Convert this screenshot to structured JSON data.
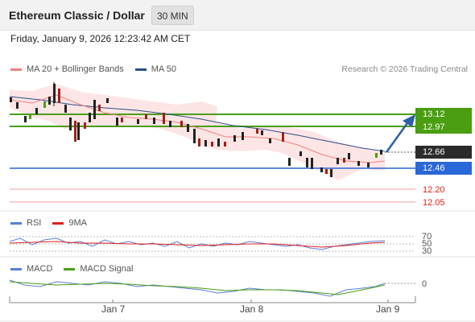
{
  "header": {
    "title": "Ethereum Classic / Dollar",
    "interval": "30 MIN"
  },
  "datetime": "Friday, January 9, 2026 12:23:42 AM CET",
  "legend": {
    "ma20_bb": "MA 20 + Bollinger Bands",
    "ma20_color": "#f08080",
    "ma50": "MA 50",
    "ma50_color": "#2c4f8a",
    "research": "Research © 2026 Trading Central"
  },
  "levels": {
    "resistance_1": "13.12",
    "resistance_2": "12.97",
    "current": "12.66",
    "support_pivot": "12.46",
    "support_1": "12.20",
    "support_2": "12.05",
    "resistance_color": "#4a9e10",
    "pivot_color": "#2a67d8",
    "support_color": "#e02020"
  },
  "rsi_panel": {
    "rsi_label": "RSI",
    "rsi_color": "#5b7fd6",
    "ma_label": "9MA",
    "ma_color": "#e02020",
    "scale": [
      "70",
      "50",
      "30"
    ]
  },
  "macd_panel": {
    "macd_label": "MACD",
    "macd_color": "#5b7fd6",
    "signal_label": "MACD Signal",
    "signal_color": "#4a9e10",
    "zero": "0"
  },
  "x_axis": [
    "Jan 7",
    "Jan 8",
    "Jan 9"
  ]
}
